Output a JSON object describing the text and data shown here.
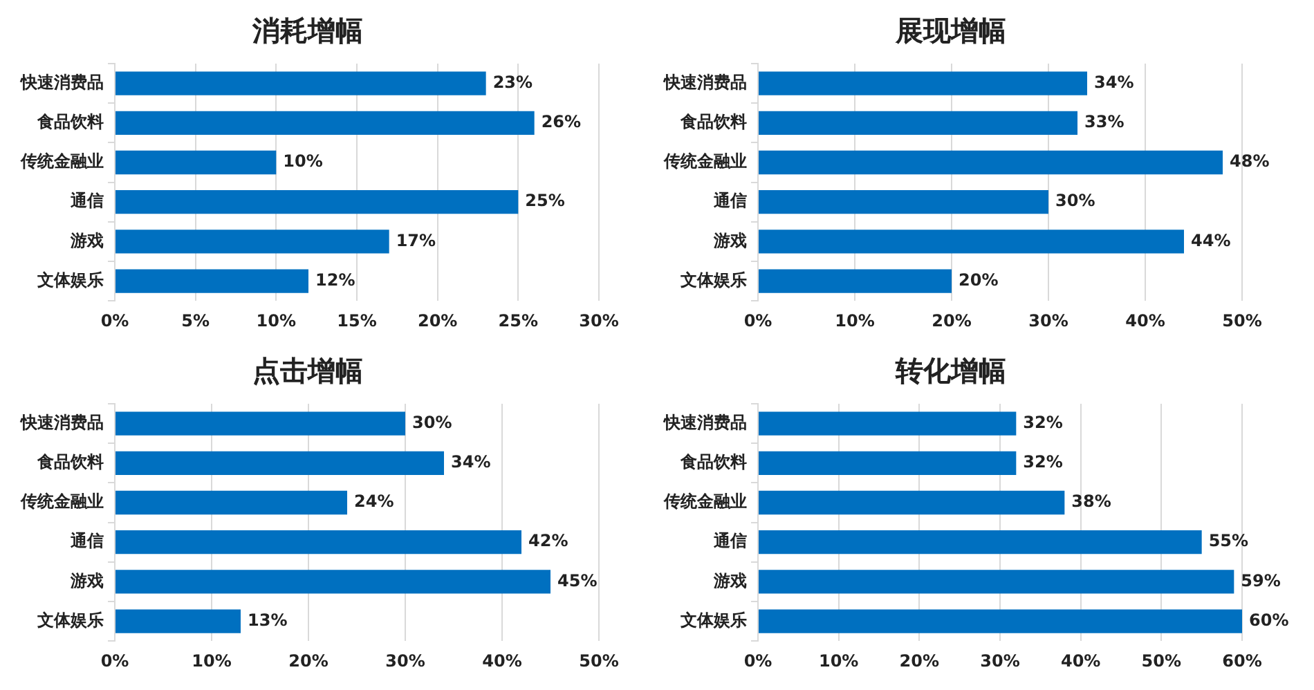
{
  "chart_data": [
    {
      "type": "bar",
      "orientation": "horizontal",
      "title": "消耗增幅",
      "categories": [
        "快速消费品",
        "食品饮料",
        "传统金融业",
        "通信",
        "游戏",
        "文体娱乐"
      ],
      "values": [
        23,
        26,
        10,
        25,
        17,
        12
      ],
      "value_labels": [
        "23%",
        "26%",
        "10%",
        "25%",
        "17%",
        "12%"
      ],
      "color": "#0070c0",
      "xlim": [
        0,
        30
      ],
      "xticks": [
        {
          "value": 0,
          "label": "0%"
        },
        {
          "value": 5,
          "label": "5%"
        },
        {
          "value": 10,
          "label": "10%"
        },
        {
          "value": 15,
          "label": "15%"
        },
        {
          "value": 20,
          "label": "20%"
        },
        {
          "value": 25,
          "label": "25%"
        },
        {
          "value": 30,
          "label": "30%"
        }
      ],
      "grid": "x",
      "legend": false
    },
    {
      "type": "bar",
      "orientation": "horizontal",
      "title": "展现增幅",
      "categories": [
        "快速消费品",
        "食品饮料",
        "传统金融业",
        "通信",
        "游戏",
        "文体娱乐"
      ],
      "values": [
        34,
        33,
        48,
        30,
        44,
        20
      ],
      "value_labels": [
        "34%",
        "33%",
        "48%",
        "30%",
        "44%",
        "20%"
      ],
      "color": "#0070c0",
      "xlim": [
        0,
        50
      ],
      "xticks": [
        {
          "value": 0,
          "label": "0%"
        },
        {
          "value": 10,
          "label": "10%"
        },
        {
          "value": 20,
          "label": "20%"
        },
        {
          "value": 30,
          "label": "30%"
        },
        {
          "value": 40,
          "label": "40%"
        },
        {
          "value": 50,
          "label": "50%"
        }
      ],
      "grid": "x",
      "legend": false
    },
    {
      "type": "bar",
      "orientation": "horizontal",
      "title": "点击增幅",
      "categories": [
        "快速消费品",
        "食品饮料",
        "传统金融业",
        "通信",
        "游戏",
        "文体娱乐"
      ],
      "values": [
        30,
        34,
        24,
        42,
        45,
        13
      ],
      "value_labels": [
        "30%",
        "34%",
        "24%",
        "42%",
        "45%",
        "13%"
      ],
      "color": "#0070c0",
      "xlim": [
        0,
        50
      ],
      "xticks": [
        {
          "value": 0,
          "label": "0%"
        },
        {
          "value": 10,
          "label": "10%"
        },
        {
          "value": 20,
          "label": "20%"
        },
        {
          "value": 30,
          "label": "30%"
        },
        {
          "value": 40,
          "label": "40%"
        },
        {
          "value": 50,
          "label": "50%"
        }
      ],
      "grid": "x",
      "legend": false
    },
    {
      "type": "bar",
      "orientation": "horizontal",
      "title": "转化增幅",
      "categories": [
        "快速消费品",
        "食品饮料",
        "传统金融业",
        "通信",
        "游戏",
        "文体娱乐"
      ],
      "values": [
        32,
        32,
        38,
        55,
        59,
        60
      ],
      "value_labels": [
        "32%",
        "32%",
        "38%",
        "55%",
        "59%",
        "60%"
      ],
      "color": "#0070c0",
      "xlim": [
        0,
        60
      ],
      "xticks": [
        {
          "value": 0,
          "label": "0%"
        },
        {
          "value": 10,
          "label": "10%"
        },
        {
          "value": 20,
          "label": "20%"
        },
        {
          "value": 30,
          "label": "30%"
        },
        {
          "value": 40,
          "label": "40%"
        },
        {
          "value": 50,
          "label": "50%"
        },
        {
          "value": 60,
          "label": "60%"
        }
      ],
      "grid": "x",
      "legend": false
    }
  ]
}
